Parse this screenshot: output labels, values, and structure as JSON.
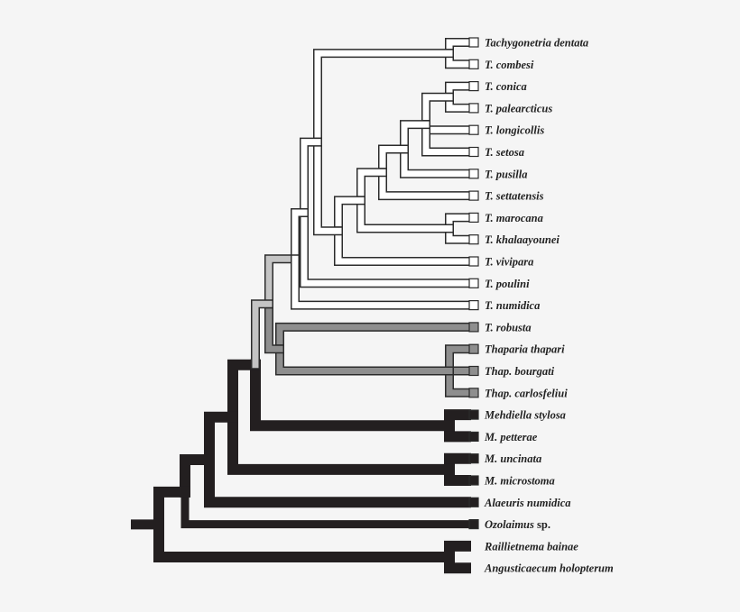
{
  "colors": {
    "background": "#f5f5f5",
    "outline": "#2b2b2b",
    "white": "#ffffff",
    "lightgray": "#c4c4c4",
    "darkgray": "#8e8e8e",
    "black": "#231f20"
  },
  "tree": {
    "state": "black",
    "children": [
      {
        "state": "black",
        "children": [
          {
            "state": "black",
            "children": [
              {
                "state": "black",
                "children": [
                  {
                    "state": "black",
                    "children": [
                      {
                        "state": "lightgray",
                        "children": [
                          {
                            "state": "lightgray",
                            "children": [
                              {
                                "state": "white",
                                "children": [
                                  {
                                    "state": "white",
                                    "children": [
                                      {
                                        "state": "white",
                                        "children": [
                                          {
                                            "state": "white",
                                            "label": "Tachygonetria dentata",
                                            "box": "white"
                                          },
                                          {
                                            "state": "white",
                                            "label": "T. combesi",
                                            "box": "white"
                                          }
                                        ]
                                      },
                                      {
                                        "state": "white",
                                        "children": [
                                          {
                                            "state": "white",
                                            "children": [
                                              {
                                                "state": "white",
                                                "children": [
                                                  {
                                                    "state": "white",
                                                    "children": [
                                                      {
                                                        "state": "white",
                                                        "children": [
                                                          {
                                                            "state": "white",
                                                            "children": [
                                                              {
                                                                "state": "white",
                                                                "label": "T. conica",
                                                                "box": "white"
                                                              },
                                                              {
                                                                "state": "white",
                                                                "label": "T. palearcticus",
                                                                "box": "white"
                                                              }
                                                            ]
                                                          },
                                                          {
                                                            "state": "white",
                                                            "label": "T. longicollis",
                                                            "box": "white"
                                                          },
                                                          {
                                                            "state": "white",
                                                            "label": "T. setosa",
                                                            "box": "white"
                                                          }
                                                        ]
                                                      },
                                                      {
                                                        "state": "white",
                                                        "label": "T. pusilla",
                                                        "box": "white"
                                                      }
                                                    ]
                                                  },
                                                  {
                                                    "state": "white",
                                                    "label": "T. settatensis",
                                                    "box": "white"
                                                  }
                                                ]
                                              },
                                              {
                                                "state": "white",
                                                "children": [
                                                  {
                                                    "state": "white",
                                                    "label": "T. marocana",
                                                    "box": "white"
                                                  },
                                                  {
                                                    "state": "white",
                                                    "label": "T. khalaayounei",
                                                    "box": "white"
                                                  }
                                                ]
                                              }
                                            ]
                                          },
                                          {
                                            "state": "white",
                                            "label": "T. vivipara",
                                            "box": "white"
                                          }
                                        ]
                                      }
                                    ]
                                  },
                                  {
                                    "state": "white",
                                    "label": "T. poulini",
                                    "box": "white"
                                  }
                                ]
                              },
                              {
                                "state": "white",
                                "label": "T. numidica",
                                "box": "white"
                              }
                            ]
                          },
                          {
                            "state": "darkgray",
                            "children": [
                              {
                                "state": "darkgray",
                                "label": "T. robusta",
                                "box": "darkgray"
                              },
                              {
                                "state": "darkgray",
                                "children": [
                                  {
                                    "state": "darkgray",
                                    "label": "Thaparia thapari",
                                    "box": "darkgray"
                                  },
                                  {
                                    "state": "darkgray",
                                    "label": "Thap. bourgati",
                                    "box": "darkgray"
                                  },
                                  {
                                    "state": "darkgray",
                                    "label": "Thap. carlosfeliui",
                                    "box": "darkgray"
                                  }
                                ]
                              }
                            ]
                          }
                        ]
                      },
                      {
                        "state": "black",
                        "children": [
                          {
                            "state": "black",
                            "label": "Mehdiella stylosa",
                            "box": "black"
                          },
                          {
                            "state": "black",
                            "label": "M. petterae",
                            "box": "black"
                          }
                        ]
                      }
                    ]
                  },
                  {
                    "state": "black",
                    "children": [
                      {
                        "state": "black",
                        "label": "M. uncinata",
                        "box": "black"
                      },
                      {
                        "state": "black",
                        "label": "M. microstoma",
                        "box": "black"
                      }
                    ]
                  }
                ]
              },
              {
                "state": "black",
                "label": "Alaeuris numidica",
                "box": "black"
              }
            ]
          },
          {
            "state": "black",
            "label": "Ozolaimus",
            "suffix": " sp.",
            "box": "black"
          }
        ]
      },
      {
        "state": "black",
        "children": [
          {
            "state": "black",
            "label": "Raillietnema bainae",
            "box": "none"
          },
          {
            "state": "black",
            "label": "Angusticaecum holopterum",
            "box": "none"
          }
        ]
      }
    ]
  }
}
